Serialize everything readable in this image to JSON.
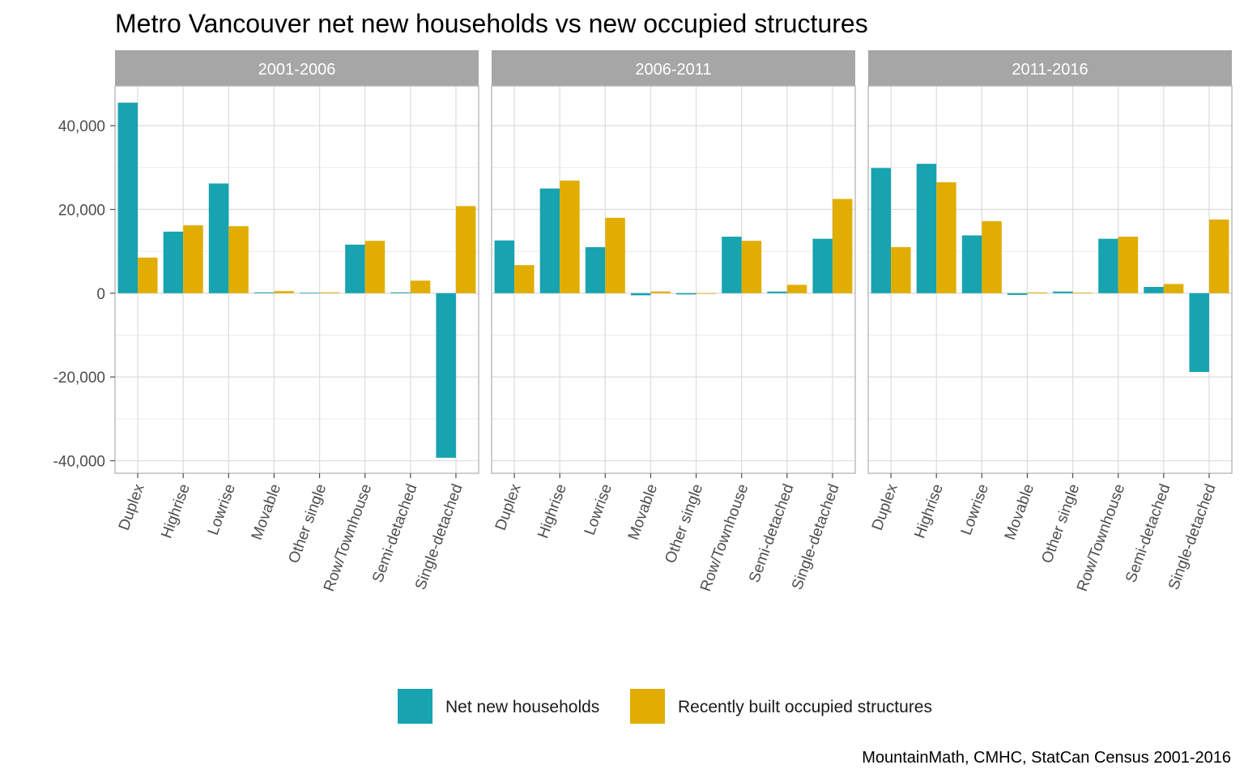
{
  "chart_data": {
    "type": "bar",
    "title": "Metro Vancouver net new households vs new occupied structures",
    "caption": "MountainMath, CMHC, StatCan Census 2001-2016",
    "categories": [
      "Duplex",
      "Highrise",
      "Lowrise",
      "Movable",
      "Other single",
      "Row/Townhouse",
      "Semi-detached",
      "Single-detached"
    ],
    "ylim": [
      -43000,
      49500
    ],
    "y_ticks": [
      40000,
      20000,
      0,
      -20000,
      -40000
    ],
    "y_tick_labels": [
      "40,000",
      "20,000",
      "0",
      "-20,000",
      "-40,000"
    ],
    "grid": true,
    "legend_position": "bottom",
    "series_meta": [
      {
        "name": "Net new households",
        "color": "#17A3B0"
      },
      {
        "name": "Recently built occupied structures",
        "color": "#E1AD01"
      }
    ],
    "panels": [
      {
        "label": "2001-2006",
        "series": [
          {
            "name": "Net new households",
            "values": [
              45500,
              14700,
              26200,
              200,
              100,
              11600,
              200,
              -39300
            ]
          },
          {
            "name": "Recently built occupied structures",
            "values": [
              8500,
              16200,
              16000,
              500,
              200,
              12500,
              3000,
              20800
            ]
          }
        ]
      },
      {
        "label": "2006-2011",
        "series": [
          {
            "name": "Net new households",
            "values": [
              12600,
              25000,
              11000,
              -500,
              -300,
              13500,
              400,
              13000
            ]
          },
          {
            "name": "Recently built occupied structures",
            "values": [
              6700,
              26900,
              18000,
              400,
              0,
              12500,
              2000,
              22500
            ]
          }
        ]
      },
      {
        "label": "2011-2016",
        "series": [
          {
            "name": "Net new households",
            "values": [
              29900,
              30900,
              13800,
              -400,
              400,
              13000,
              1500,
              -18800
            ]
          },
          {
            "name": "Recently built occupied structures",
            "values": [
              11000,
              26500,
              17200,
              200,
              100,
              13500,
              2200,
              17600
            ]
          }
        ]
      }
    ]
  }
}
